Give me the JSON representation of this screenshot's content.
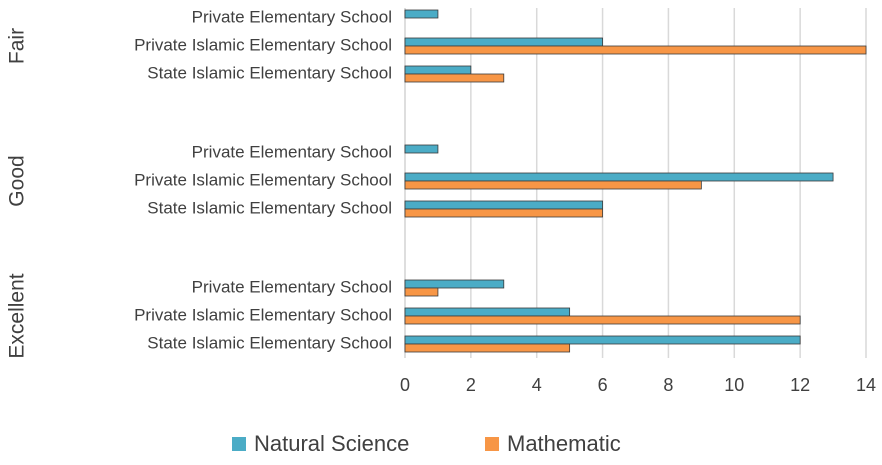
{
  "chart_data": {
    "type": "grouped-hbar",
    "group_labels": [
      "Fair",
      "Good",
      "Excellent"
    ],
    "categories": [
      "Private Elementary School",
      "Private Islamic Elementary School",
      "State Islamic Elementary School",
      "Private Elementary School",
      "Private Islamic Elementary School",
      "State Islamic Elementary School",
      "Private Elementary School",
      "Private Islamic Elementary School",
      "State Islamic Elementary School"
    ],
    "series": [
      {
        "name": "Natural Science",
        "color": "#4bacc6",
        "values": [
          1,
          6,
          2,
          1,
          13,
          6,
          3,
          5,
          12
        ]
      },
      {
        "name": "Mathematic",
        "color": "#f79646",
        "values": [
          0,
          14,
          3,
          0,
          9,
          6,
          1,
          12,
          5
        ]
      }
    ],
    "xlim": [
      0,
      14
    ],
    "xticks": [
      0,
      2,
      4,
      6,
      8,
      10,
      12,
      14
    ],
    "grid": true
  }
}
